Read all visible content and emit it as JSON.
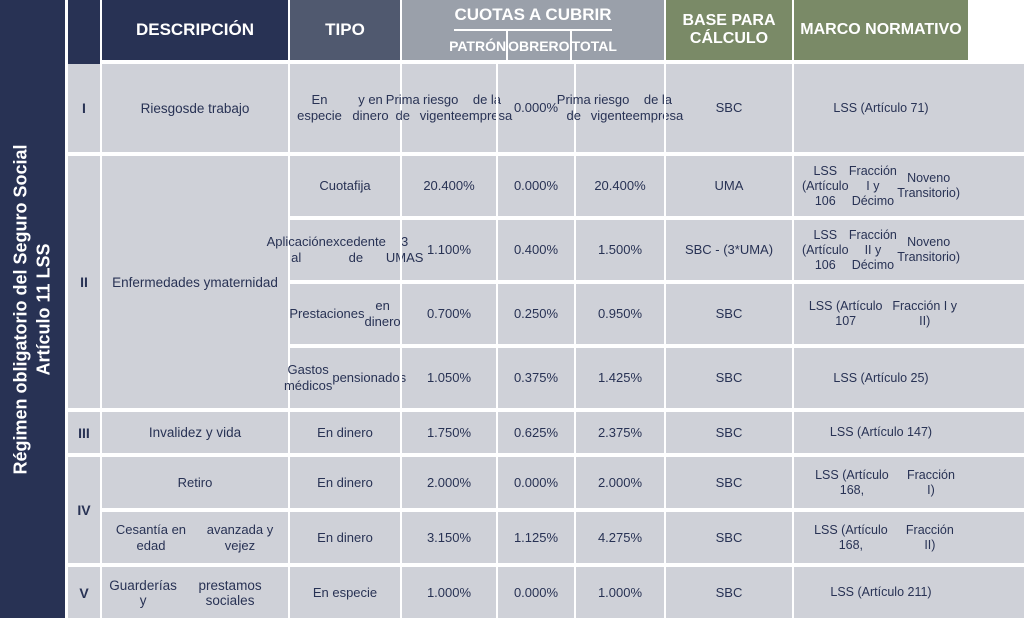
{
  "colors": {
    "dark": "#283254",
    "mid": "#50596f",
    "grey": "#9aa0aa",
    "olive": "#7a8a67",
    "cell": "#cfd1d8",
    "gap": "#ffffff"
  },
  "sidebar": {
    "line1": "Régimen obligatorio del Seguro Social",
    "line2": "Artículo 11 LSS"
  },
  "headers": {
    "descripcion": "DESCRIPCIÓN",
    "tipo": "TIPO",
    "cuotas": "CUOTAS A CUBRIR",
    "patron": "PATRÓN",
    "obrero": "OBRERO",
    "total": "TOTAL",
    "base": "BASE PARA CÁLCULO",
    "marco": "MARCO NORMATIVO"
  },
  "groups": [
    {
      "roman": "I",
      "desc": "Riesgos\nde trabajo",
      "rows": [
        {
          "tipo": "En especie\ny en dinero",
          "patron": "Prima de\nriesgo vigente\nde la empresa",
          "obrero": "0.000%",
          "total": "Prima de\nriesgo vigente\nde la empresa",
          "base": "SBC",
          "marco": "LSS (Artículo 71)"
        }
      ]
    },
    {
      "roman": "II",
      "desc": "Enfermedades y\nmaternidad",
      "rows": [
        {
          "tipo": "Cuota\nfija",
          "patron": "20.400%",
          "obrero": "0.000%",
          "total": "20.400%",
          "base": "UMA",
          "marco": "LSS (Artículo 106\nFracción I y Décimo\nNoveno Transitorio)"
        },
        {
          "tipo": "Aplicación al\nexcedente de\n3 UMAS",
          "patron": "1.100%",
          "obrero": "0.400%",
          "total": "1.500%",
          "base": "SBC - (3*UMA)",
          "marco": "LSS (Artículo 106\nFracción II y Décimo\nNoveno Transitorio)"
        },
        {
          "tipo": "Prestaciones\nen dinero",
          "patron": "0.700%",
          "obrero": "0.250%",
          "total": "0.950%",
          "base": "SBC",
          "marco": "LSS (Artículo 107\nFracción I y II)"
        },
        {
          "tipo": "Gastos médicos\npensionados",
          "patron": "1.050%",
          "obrero": "0.375%",
          "total": "1.425%",
          "base": "SBC",
          "marco": "LSS (Artículo 25)"
        }
      ]
    },
    {
      "roman": "III",
      "desc": "Invalidez y vida",
      "rows": [
        {
          "tipo": "En dinero",
          "patron": "1.750%",
          "obrero": "0.625%",
          "total": "2.375%",
          "base": "SBC",
          "marco": "LSS (Artículo 147)"
        }
      ]
    },
    {
      "roman": "IV",
      "desc": "",
      "rows": [
        {
          "desc": "Retiro",
          "tipo": "En dinero",
          "patron": "2.000%",
          "obrero": "0.000%",
          "total": "2.000%",
          "base": "SBC",
          "marco": "LSS (Artículo 168,\nFracción I)"
        },
        {
          "desc": "Cesantía en edad\navanzada y vejez",
          "tipo": "En dinero",
          "patron": "3.150%",
          "obrero": "1.125%",
          "total": "4.275%",
          "base": "SBC",
          "marco": "LSS (Artículo 168,\nFracción II)"
        }
      ]
    },
    {
      "roman": "V",
      "desc": "Guarderías y\nprestamos sociales",
      "rows": [
        {
          "tipo": "En especie",
          "patron": "1.000%",
          "obrero": "0.000%",
          "total": "1.000%",
          "base": "SBC",
          "marco": "LSS (Artículo 211)"
        }
      ]
    }
  ],
  "row_heights": {
    "I": 88,
    "II_each": 64,
    "III": 45,
    "IV_each": 55,
    "V": 55
  }
}
